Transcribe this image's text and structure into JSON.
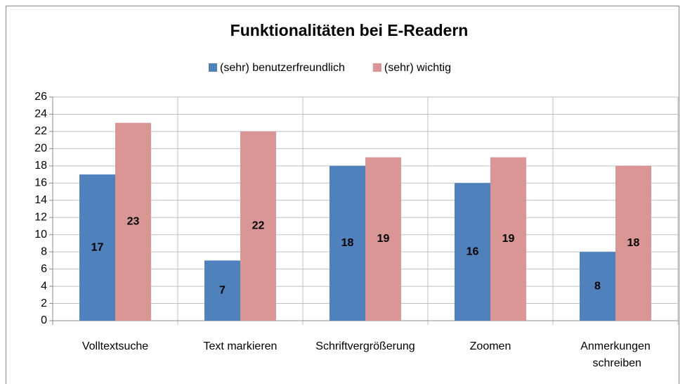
{
  "chart_data": {
    "type": "bar",
    "title": "Funktionalitäten bei E-Readern",
    "categories": [
      "Volltextsuche",
      "Text markieren",
      "Schriftvergrößerung",
      "Zoomen",
      "Anmerkungen schreiben"
    ],
    "series": [
      {
        "name": "(sehr) benutzerfreundlich",
        "color": "#4f81bd",
        "values": [
          17,
          7,
          18,
          16,
          8
        ]
      },
      {
        "name": "(sehr) wichtig",
        "color": "#d99694",
        "values": [
          23,
          22,
          19,
          19,
          18
        ]
      }
    ],
    "ylim": [
      0,
      26
    ],
    "yticks": [
      0,
      2,
      4,
      6,
      8,
      10,
      12,
      14,
      16,
      18,
      20,
      22,
      24,
      26
    ],
    "grid": true,
    "legend": "top"
  }
}
